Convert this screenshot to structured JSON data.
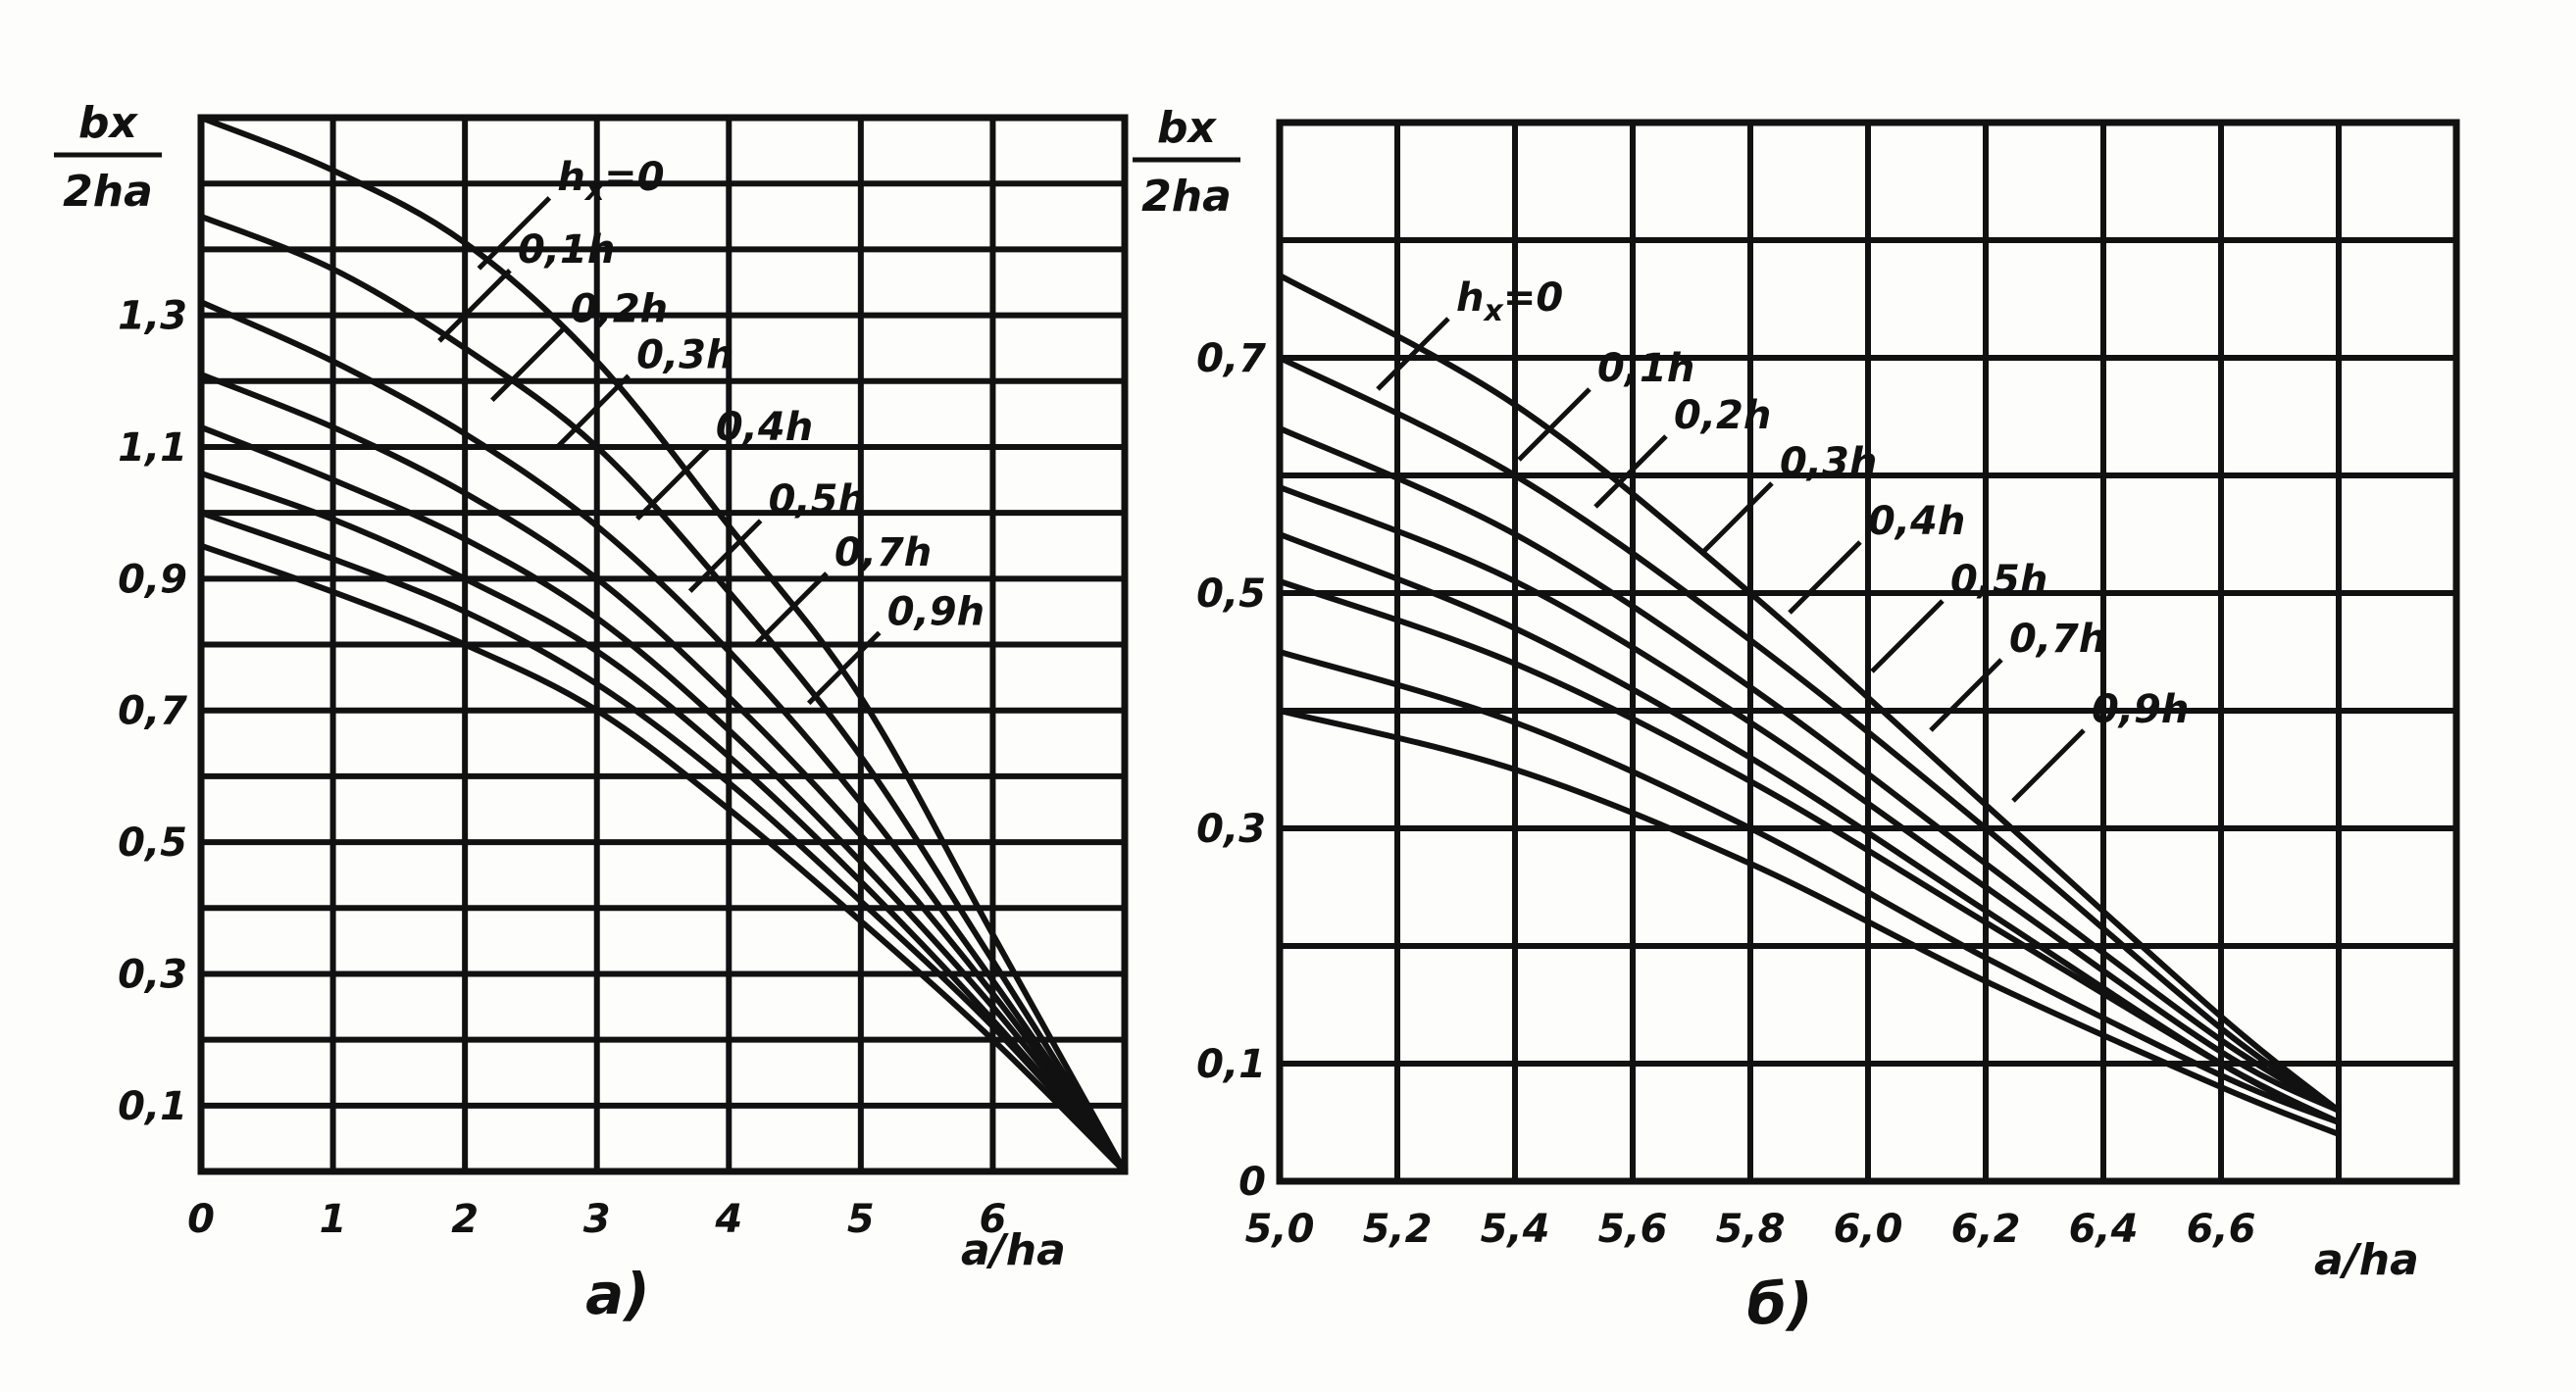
{
  "chart_data": [
    {
      "panel": "a",
      "type": "line",
      "caption": "a)",
      "ylabel_num": "bx",
      "ylabel_den": "2ha",
      "xlabel": "a/ha",
      "xlim": [
        0,
        7
      ],
      "ylim": [
        0,
        1.6
      ],
      "xticks": [
        "0",
        "1",
        "2",
        "3",
        "4",
        "5",
        "6"
      ],
      "yticks": [
        "0,1",
        "0,3",
        "0,5",
        "0,7",
        "0,9",
        "1,1",
        "1,3"
      ],
      "grid": true,
      "series": [
        {
          "name": "hx=0",
          "points": [
            [
              0,
              1.6
            ],
            [
              1,
              1.52
            ],
            [
              2,
              1.41
            ],
            [
              3,
              1.23
            ],
            [
              4,
              0.98
            ],
            [
              5,
              0.72
            ],
            [
              6,
              0.36
            ],
            [
              7,
              0.0
            ]
          ]
        },
        {
          "name": "0,1h",
          "points": [
            [
              0,
              1.45
            ],
            [
              1,
              1.37
            ],
            [
              2,
              1.25
            ],
            [
              3,
              1.1
            ],
            [
              4,
              0.88
            ],
            [
              5,
              0.63
            ],
            [
              6,
              0.32
            ],
            [
              7,
              0.0
            ]
          ]
        },
        {
          "name": "0,2h",
          "points": [
            [
              0,
              1.32
            ],
            [
              1,
              1.23
            ],
            [
              2,
              1.12
            ],
            [
              3,
              0.98
            ],
            [
              4,
              0.79
            ],
            [
              5,
              0.56
            ],
            [
              6,
              0.29
            ],
            [
              7,
              0.0
            ]
          ]
        },
        {
          "name": "0,3h",
          "points": [
            [
              0,
              1.21
            ],
            [
              1,
              1.13
            ],
            [
              2,
              1.03
            ],
            [
              3,
              0.9
            ],
            [
              4,
              0.72
            ],
            [
              5,
              0.51
            ],
            [
              6,
              0.27
            ],
            [
              7,
              0.0
            ]
          ]
        },
        {
          "name": "0,4h",
          "points": [
            [
              0,
              1.13
            ],
            [
              1,
              1.05
            ],
            [
              2,
              0.96
            ],
            [
              3,
              0.84
            ],
            [
              4,
              0.67
            ],
            [
              5,
              0.47
            ],
            [
              6,
              0.25
            ],
            [
              7,
              0.0
            ]
          ]
        },
        {
          "name": "0,5h",
          "points": [
            [
              0,
              1.06
            ],
            [
              1,
              0.99
            ],
            [
              2,
              0.9
            ],
            [
              3,
              0.79
            ],
            [
              4,
              0.63
            ],
            [
              5,
              0.44
            ],
            [
              6,
              0.23
            ],
            [
              7,
              0.0
            ]
          ]
        },
        {
          "name": "0,7h",
          "points": [
            [
              0,
              1.0
            ],
            [
              1,
              0.93
            ],
            [
              2,
              0.85
            ],
            [
              3,
              0.74
            ],
            [
              4,
              0.59
            ],
            [
              5,
              0.41
            ],
            [
              6,
              0.22
            ],
            [
              7,
              0.0
            ]
          ]
        },
        {
          "name": "0,9h",
          "points": [
            [
              0,
              0.95
            ],
            [
              1,
              0.88
            ],
            [
              2,
              0.8
            ],
            [
              3,
              0.7
            ],
            [
              4,
              0.55
            ],
            [
              5,
              0.38
            ],
            [
              6,
              0.2
            ],
            [
              7,
              0.0
            ]
          ]
        }
      ],
      "labels": [
        {
          "text": "hx=0",
          "at": [
            2.7,
            1.49
          ]
        },
        {
          "text": "0,1h",
          "at": [
            2.4,
            1.38
          ]
        },
        {
          "text": "0,2h",
          "at": [
            2.8,
            1.29
          ]
        },
        {
          "text": "0,3h",
          "at": [
            3.3,
            1.22
          ]
        },
        {
          "text": "0,4h",
          "at": [
            3.9,
            1.11
          ]
        },
        {
          "text": "0,5h",
          "at": [
            4.3,
            1.0
          ]
        },
        {
          "text": "0,7h",
          "at": [
            4.8,
            0.92
          ]
        },
        {
          "text": "0,9h",
          "at": [
            5.2,
            0.83
          ]
        }
      ]
    },
    {
      "panel": "b",
      "type": "line",
      "caption": "б)",
      "ylabel_num": "bx",
      "ylabel_den": "2ha",
      "xlabel": "a/ha",
      "xlim": [
        5.0,
        7.0
      ],
      "ylim": [
        0,
        0.9
      ],
      "xticks": [
        "5,0",
        "5,2",
        "5,4",
        "5,6",
        "5,8",
        "6,0",
        "6,2",
        "6,4",
        "6,6"
      ],
      "yticks": [
        "0",
        "0,1",
        "0,3",
        "0,5",
        "0,7"
      ],
      "grid": true,
      "series": [
        {
          "name": "hx=0",
          "points": [
            [
              5.0,
              0.77
            ],
            [
              5.4,
              0.66
            ],
            [
              5.8,
              0.5
            ],
            [
              6.2,
              0.32
            ],
            [
              6.6,
              0.14
            ],
            [
              6.8,
              0.06
            ]
          ]
        },
        {
          "name": "0,1h",
          "points": [
            [
              5.0,
              0.7
            ],
            [
              5.4,
              0.6
            ],
            [
              5.8,
              0.46
            ],
            [
              6.2,
              0.3
            ],
            [
              6.6,
              0.13
            ],
            [
              6.8,
              0.06
            ]
          ]
        },
        {
          "name": "0,2h",
          "points": [
            [
              5.0,
              0.64
            ],
            [
              5.4,
              0.55
            ],
            [
              5.8,
              0.42
            ],
            [
              6.2,
              0.27
            ],
            [
              6.6,
              0.12
            ],
            [
              6.8,
              0.06
            ]
          ]
        },
        {
          "name": "0,3h",
          "points": [
            [
              5.0,
              0.59
            ],
            [
              5.4,
              0.51
            ],
            [
              5.8,
              0.39
            ],
            [
              6.2,
              0.25
            ],
            [
              6.6,
              0.11
            ],
            [
              6.8,
              0.06
            ]
          ]
        },
        {
          "name": "0,4h",
          "points": [
            [
              5.0,
              0.55
            ],
            [
              5.4,
              0.47
            ],
            [
              5.8,
              0.36
            ],
            [
              6.2,
              0.23
            ],
            [
              6.6,
              0.1
            ],
            [
              6.8,
              0.05
            ]
          ]
        },
        {
          "name": "0,5h",
          "points": [
            [
              5.0,
              0.51
            ],
            [
              5.4,
              0.44
            ],
            [
              5.8,
              0.34
            ],
            [
              6.2,
              0.22
            ],
            [
              6.6,
              0.1
            ],
            [
              6.8,
              0.05
            ]
          ]
        },
        {
          "name": "0,7h",
          "points": [
            [
              5.0,
              0.45
            ],
            [
              5.4,
              0.39
            ],
            [
              5.8,
              0.3
            ],
            [
              6.2,
              0.19
            ],
            [
              6.6,
              0.09
            ],
            [
              6.8,
              0.05
            ]
          ]
        },
        {
          "name": "0,9h",
          "points": [
            [
              5.0,
              0.4
            ],
            [
              5.4,
              0.35
            ],
            [
              5.8,
              0.27
            ],
            [
              6.2,
              0.17
            ],
            [
              6.6,
              0.08
            ],
            [
              6.8,
              0.04
            ]
          ]
        }
      ],
      "labels": [
        {
          "text": "hx=0",
          "at": [
            5.3,
            0.74
          ]
        },
        {
          "text": "0,1h",
          "at": [
            5.54,
            0.68
          ]
        },
        {
          "text": "0,2h",
          "at": [
            5.67,
            0.64
          ]
        },
        {
          "text": "0,3h",
          "at": [
            5.85,
            0.6
          ]
        },
        {
          "text": "0,4h",
          "at": [
            6.0,
            0.55
          ]
        },
        {
          "text": "0,5h",
          "at": [
            6.14,
            0.5
          ]
        },
        {
          "text": "0,7h",
          "at": [
            6.24,
            0.45
          ]
        },
        {
          "text": "0,9h",
          "at": [
            6.38,
            0.39
          ]
        }
      ]
    }
  ]
}
